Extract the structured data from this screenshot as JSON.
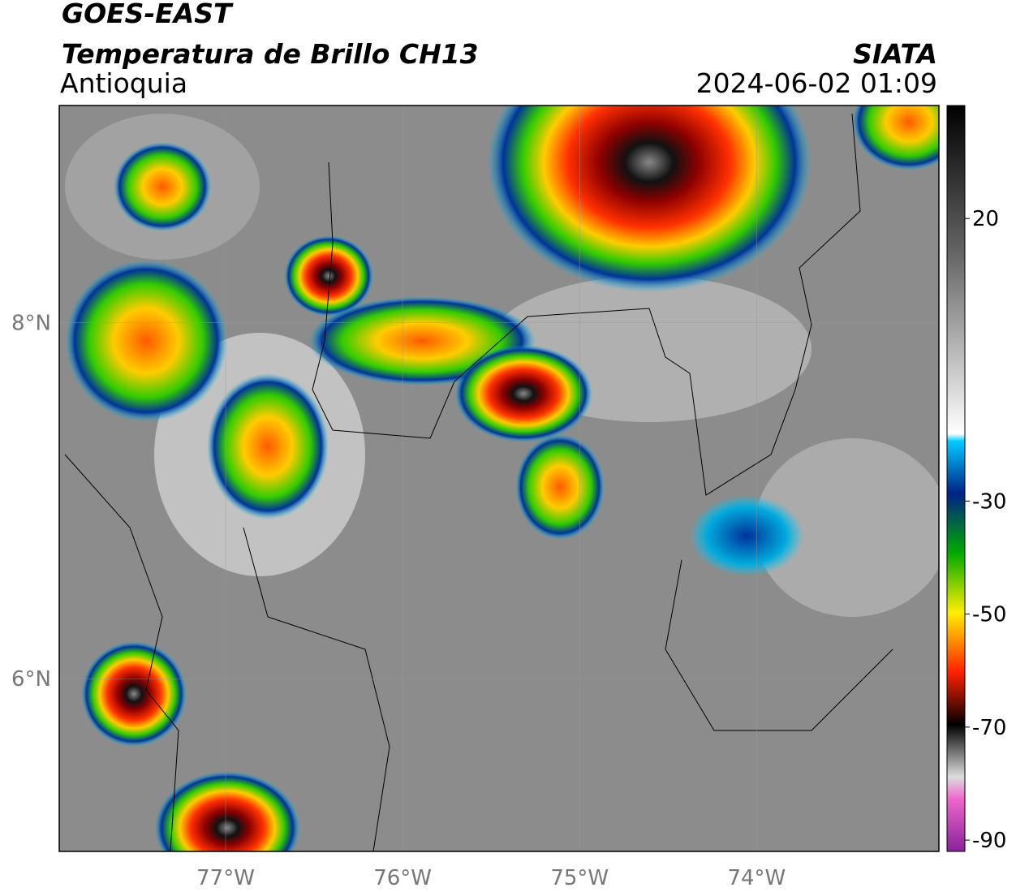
{
  "header": {
    "title": "GOES-EAST",
    "subtitle": "Temperatura de Brillo CH13",
    "region": "Antioquia",
    "source": "SIATA",
    "datetime": "2024-06-02 01:09"
  },
  "map": {
    "xlim": [
      -77.94,
      -72.97
    ],
    "ylim": [
      5.03,
      9.22
    ],
    "xticks": [
      {
        "value": -77,
        "label": "77°W"
      },
      {
        "value": -76,
        "label": "76°W"
      },
      {
        "value": -75,
        "label": "75°W"
      },
      {
        "value": -74,
        "label": "74°W"
      }
    ],
    "yticks": [
      {
        "value": 6,
        "label": "6°N"
      },
      {
        "value": 8,
        "label": "8°N"
      }
    ],
    "grid": true
  },
  "colorbar": {
    "lim": [
      -92,
      40
    ],
    "ticks": [
      20,
      -30,
      -50,
      -70,
      -90
    ]
  }
}
